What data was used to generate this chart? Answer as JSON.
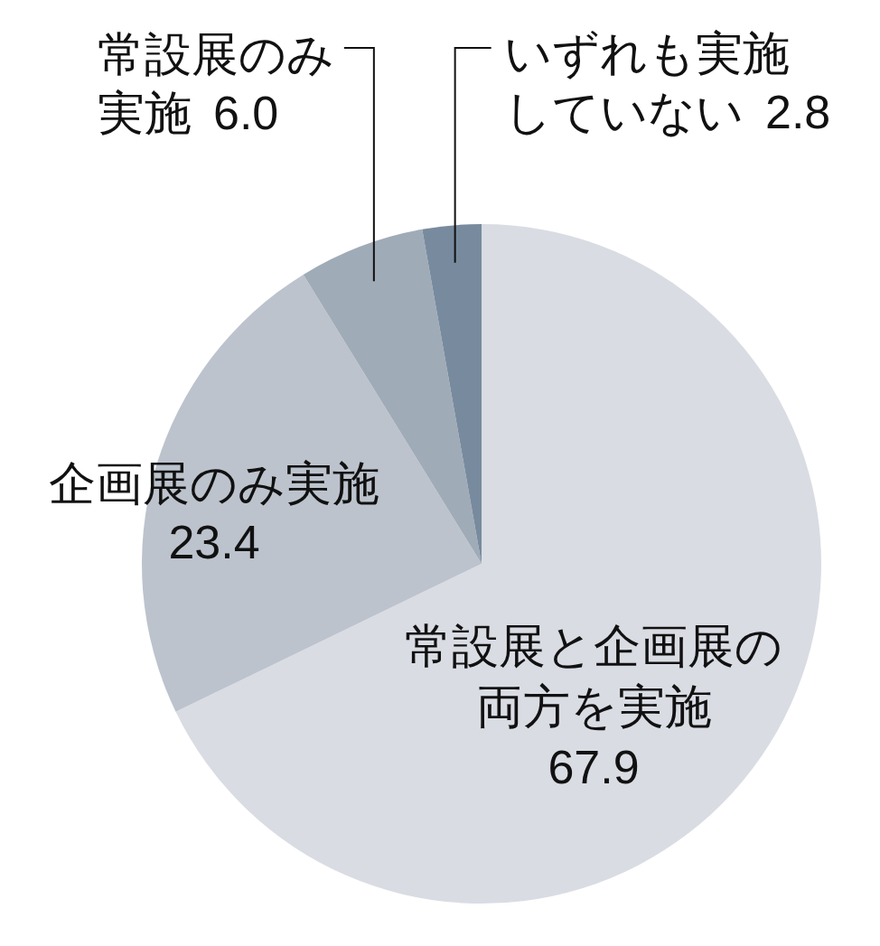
{
  "chart_data": {
    "type": "pie",
    "categories": [
      "常設展と企画展の両方を実施",
      "企画展のみ実施",
      "常設展のみ実施",
      "いずれも実施していない"
    ],
    "values": [
      67.9,
      23.4,
      6.0,
      2.8
    ],
    "value_labels": [
      "67.9",
      "23.4",
      "6.0",
      "2.8"
    ],
    "colors": [
      "#d9dce3",
      "#bcc3cd",
      "#a0abb8",
      "#788b9e"
    ]
  }
}
